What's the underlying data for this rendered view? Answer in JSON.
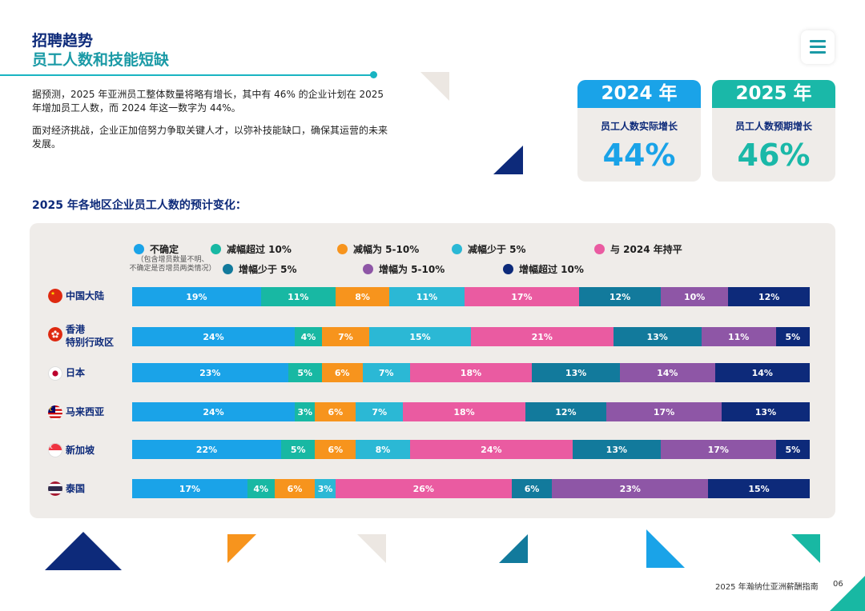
{
  "header": {
    "title_line1": "招聘趋势",
    "title_line2": "员工人数和技能短缺"
  },
  "intro": {
    "paragraph1": "据预测，2025 年亚洲员工整体数量将略有增长，其中有 46% 的企业计划在 2025 年增加员工人数，而 2024 年这一数字为 44%。",
    "paragraph2": "面对经济挑战，企业正加倍努力争取关键人才，以弥补技能缺口，确保其运营的未来发展。"
  },
  "stats": [
    {
      "year": "2024 年",
      "label": "员工人数实际增长",
      "value": "44%",
      "head_color": "#1aa3e8",
      "value_color": "#1aa3e8"
    },
    {
      "year": "2025 年",
      "label": "员工人数预期增长",
      "value": "46%",
      "head_color": "#1ab8a8",
      "value_color": "#1ab8a8"
    }
  ],
  "chart_heading": "2025 年各地区企业员工人数的预计变化：",
  "chart_data": {
    "type": "bar",
    "stacked": true,
    "orientation": "horizontal",
    "unit": "%",
    "categories": [
      "中国大陆",
      "香港\n特别行政区",
      "日本",
      "马来西亚",
      "新加坡",
      "泰国"
    ],
    "series": [
      {
        "name": "不确定",
        "color": "#1aa3e8",
        "values": [
          19,
          24,
          23,
          24,
          22,
          17
        ]
      },
      {
        "name": "减幅超过 10%",
        "color": "#18b8a3",
        "values": [
          11,
          4,
          5,
          3,
          5,
          4
        ]
      },
      {
        "name": "减幅为 5-10%",
        "color": "#f7941d",
        "values": [
          8,
          7,
          6,
          6,
          6,
          6
        ]
      },
      {
        "name": "减幅少于 5%",
        "color": "#2bb8d5",
        "values": [
          11,
          15,
          7,
          7,
          8,
          3
        ]
      },
      {
        "name": "与 2024 年持平",
        "color": "#ea5ba1",
        "values": [
          17,
          21,
          18,
          18,
          24,
          26
        ]
      },
      {
        "name": "增幅少于 5%",
        "color": "#127a9c",
        "values": [
          12,
          13,
          13,
          12,
          13,
          6
        ]
      },
      {
        "name": "增幅为 5-10%",
        "color": "#8e56a6",
        "values": [
          10,
          11,
          14,
          17,
          17,
          23
        ]
      },
      {
        "name": "增幅超过 10%",
        "color": "#0d2a7a",
        "values": [
          12,
          5,
          14,
          13,
          5,
          15
        ]
      }
    ],
    "legend_note": "（包含增员数量不明、\n不确定是否增员两类情况）",
    "legend_position": "top"
  },
  "footer": {
    "text": "2025 年瀚纳仕亚洲薪酬指南",
    "page": "06"
  },
  "icons": {
    "menu": "menu-icon",
    "flags": [
      "china-flag-icon",
      "hongkong-flag-icon",
      "japan-flag-icon",
      "malaysia-flag-icon",
      "singapore-flag-icon",
      "thailand-flag-icon"
    ]
  }
}
